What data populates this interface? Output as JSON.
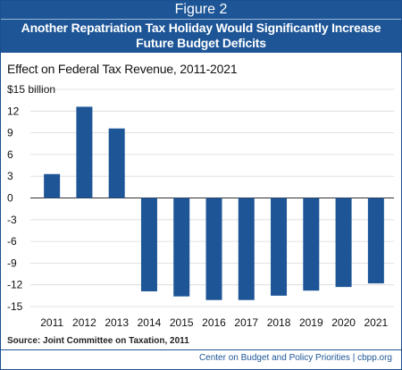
{
  "header": {
    "figure_label": "Figure 2",
    "title": "Another Repatriation Tax Holiday Would Significantly Increase Future Budget Deficits"
  },
  "subtitle": "Effect on Federal Tax Revenue, 2011-2021",
  "chart_data": {
    "type": "bar",
    "title": "Another Repatriation Tax Holiday Would Significantly Increase Future Budget Deficits",
    "subtitle": "Effect on Federal Tax Revenue, 2011-2021",
    "xlabel": "",
    "ylabel": "",
    "categories": [
      "2011",
      "2012",
      "2013",
      "2014",
      "2015",
      "2016",
      "2017",
      "2018",
      "2019",
      "2020",
      "2021"
    ],
    "series": [
      {
        "values": [
          3.3,
          12.6,
          9.6,
          -12.9,
          -13.6,
          -14.1,
          -14.1,
          -13.5,
          -12.8,
          -12.3,
          -11.8
        ]
      }
    ],
    "ylim": [
      -15,
      15
    ],
    "yticks": [
      -15,
      -12,
      -9,
      -6,
      -3,
      0,
      3,
      6,
      9,
      12,
      15
    ],
    "ytick_labels": [
      "-15",
      "-12",
      "-9",
      "-6",
      "-3",
      "0",
      "3",
      "6",
      "9",
      "12",
      "$15 billion"
    ],
    "grid": true,
    "legend": "none",
    "bar_color": "#1d5596"
  },
  "source": "Source: Joint Committee on Taxation, 2011",
  "credit": "Center on Budget and Policy Priorities | cbpp.org",
  "colors": {
    "header_bg": "#1d5596",
    "bar": "#1d5596",
    "grid": "#d9d9d9"
  }
}
